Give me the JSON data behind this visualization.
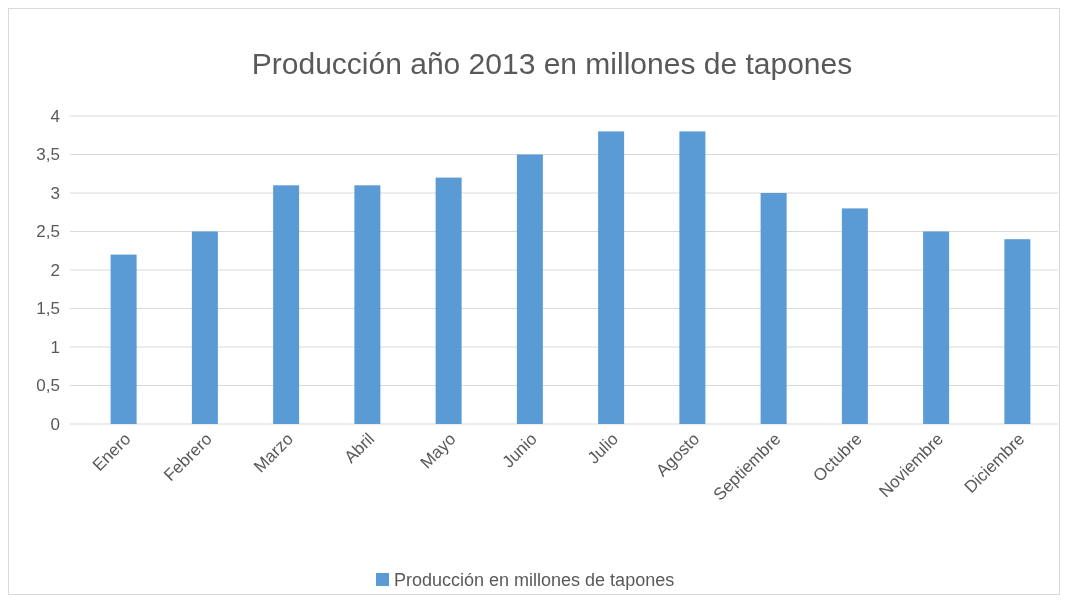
{
  "chart_data": {
    "type": "bar",
    "title": "Producción año 2013 en millones de tapones",
    "categories": [
      "Enero",
      "Febrero",
      "Marzo",
      "Abril",
      "Mayo",
      "Junio",
      "Julio",
      "Agosto",
      "Septiembre",
      "Octubre",
      "Noviembre",
      "Diciembre"
    ],
    "series": [
      {
        "name": "Producción en millones de tapones",
        "color": "#5b9bd5",
        "values": [
          2.2,
          2.5,
          3.1,
          3.1,
          3.2,
          3.5,
          3.8,
          3.8,
          3.0,
          2.8,
          2.5,
          2.4
        ]
      }
    ],
    "ylim": [
      0,
      4
    ],
    "yticks": [
      0,
      {
        "value": 0.5,
        "label": "0,5"
      },
      1,
      {
        "value": 1.5,
        "label": "1,5"
      },
      2,
      {
        "value": 2.5,
        "label": "2,5"
      },
      3,
      {
        "value": 3.5,
        "label": "3,5"
      },
      4
    ],
    "grid": "y",
    "legend": "bottom"
  }
}
